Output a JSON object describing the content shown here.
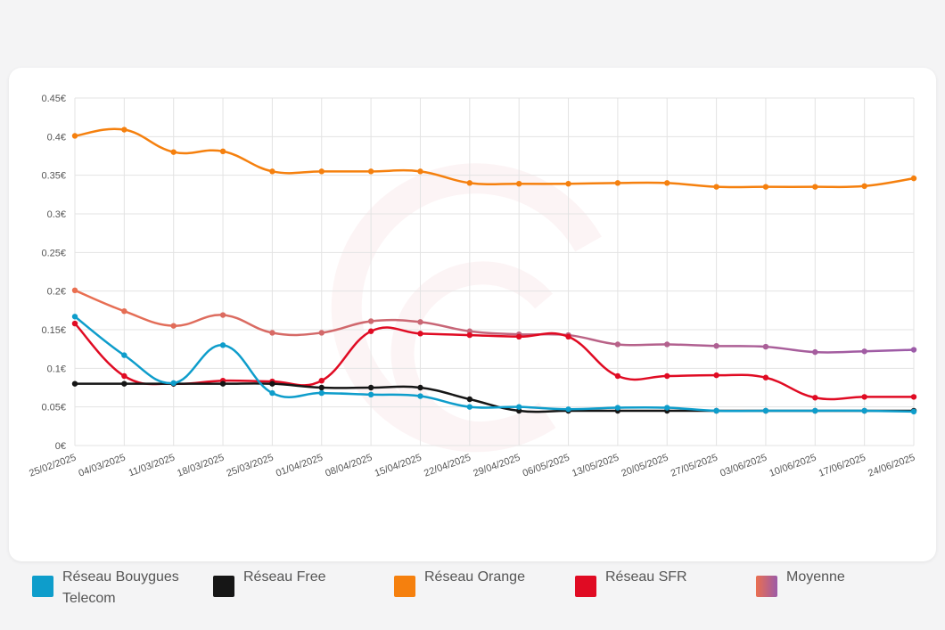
{
  "chart_data": {
    "type": "line",
    "x": [
      "25/02/2025",
      "04/03/2025",
      "11/03/2025",
      "18/03/2025",
      "25/03/2025",
      "01/04/2025",
      "08/04/2025",
      "15/04/2025",
      "22/04/2025",
      "29/04/2025",
      "06/05/2025",
      "13/05/2025",
      "20/05/2025",
      "27/05/2025",
      "03/06/2025",
      "10/06/2025",
      "17/06/2025",
      "24/06/2025"
    ],
    "ylim": [
      0,
      0.45
    ],
    "yticks": [
      {
        "value": 0,
        "label": "0€"
      },
      {
        "value": 0.05,
        "label": "0.05€"
      },
      {
        "value": 0.1,
        "label": "0.1€"
      },
      {
        "value": 0.15,
        "label": "0.15€"
      },
      {
        "value": 0.2,
        "label": "0.2€"
      },
      {
        "value": 0.25,
        "label": "0.25€"
      },
      {
        "value": 0.3,
        "label": "0.3€"
      },
      {
        "value": 0.35,
        "label": "0.35€"
      },
      {
        "value": 0.4,
        "label": "0.4€"
      },
      {
        "value": 0.45,
        "label": "0.45€"
      }
    ],
    "grid": true,
    "legend_position": "bottom",
    "series": [
      {
        "name": "Réseau Bouygues Telecom",
        "color": "#0e9dcb",
        "values": [
          0.167,
          0.117,
          0.081,
          0.13,
          0.068,
          0.068,
          0.066,
          0.064,
          0.05,
          0.05,
          0.047,
          0.049,
          0.049,
          0.045,
          0.045,
          0.045,
          0.045,
          0.044
        ]
      },
      {
        "name": "Réseau Free",
        "color": "#161616",
        "values": [
          0.08,
          0.08,
          0.08,
          0.08,
          0.08,
          0.075,
          0.075,
          0.075,
          0.06,
          0.045,
          0.045,
          0.045,
          0.045,
          0.045,
          0.045,
          0.045,
          0.045,
          0.045
        ]
      },
      {
        "name": "Réseau Orange",
        "color": "#f5800e",
        "values": [
          0.401,
          0.409,
          0.38,
          0.381,
          0.355,
          0.355,
          0.355,
          0.355,
          0.34,
          0.339,
          0.339,
          0.34,
          0.34,
          0.335,
          0.335,
          0.335,
          0.336,
          0.346
        ]
      },
      {
        "name": "Réseau SFR",
        "color": "#e00b23",
        "values": [
          0.158,
          0.09,
          0.08,
          0.084,
          0.083,
          0.084,
          0.148,
          0.145,
          0.143,
          0.141,
          0.141,
          0.09,
          0.09,
          0.091,
          0.088,
          0.062,
          0.063,
          0.063
        ]
      },
      {
        "name": "Moyenne",
        "color_start": "#ea6f50",
        "color_end": "#9c5ba8",
        "values": [
          0.201,
          0.174,
          0.155,
          0.169,
          0.146,
          0.146,
          0.161,
          0.16,
          0.148,
          0.144,
          0.143,
          0.131,
          0.131,
          0.129,
          0.128,
          0.121,
          0.122,
          0.124
        ]
      }
    ]
  }
}
